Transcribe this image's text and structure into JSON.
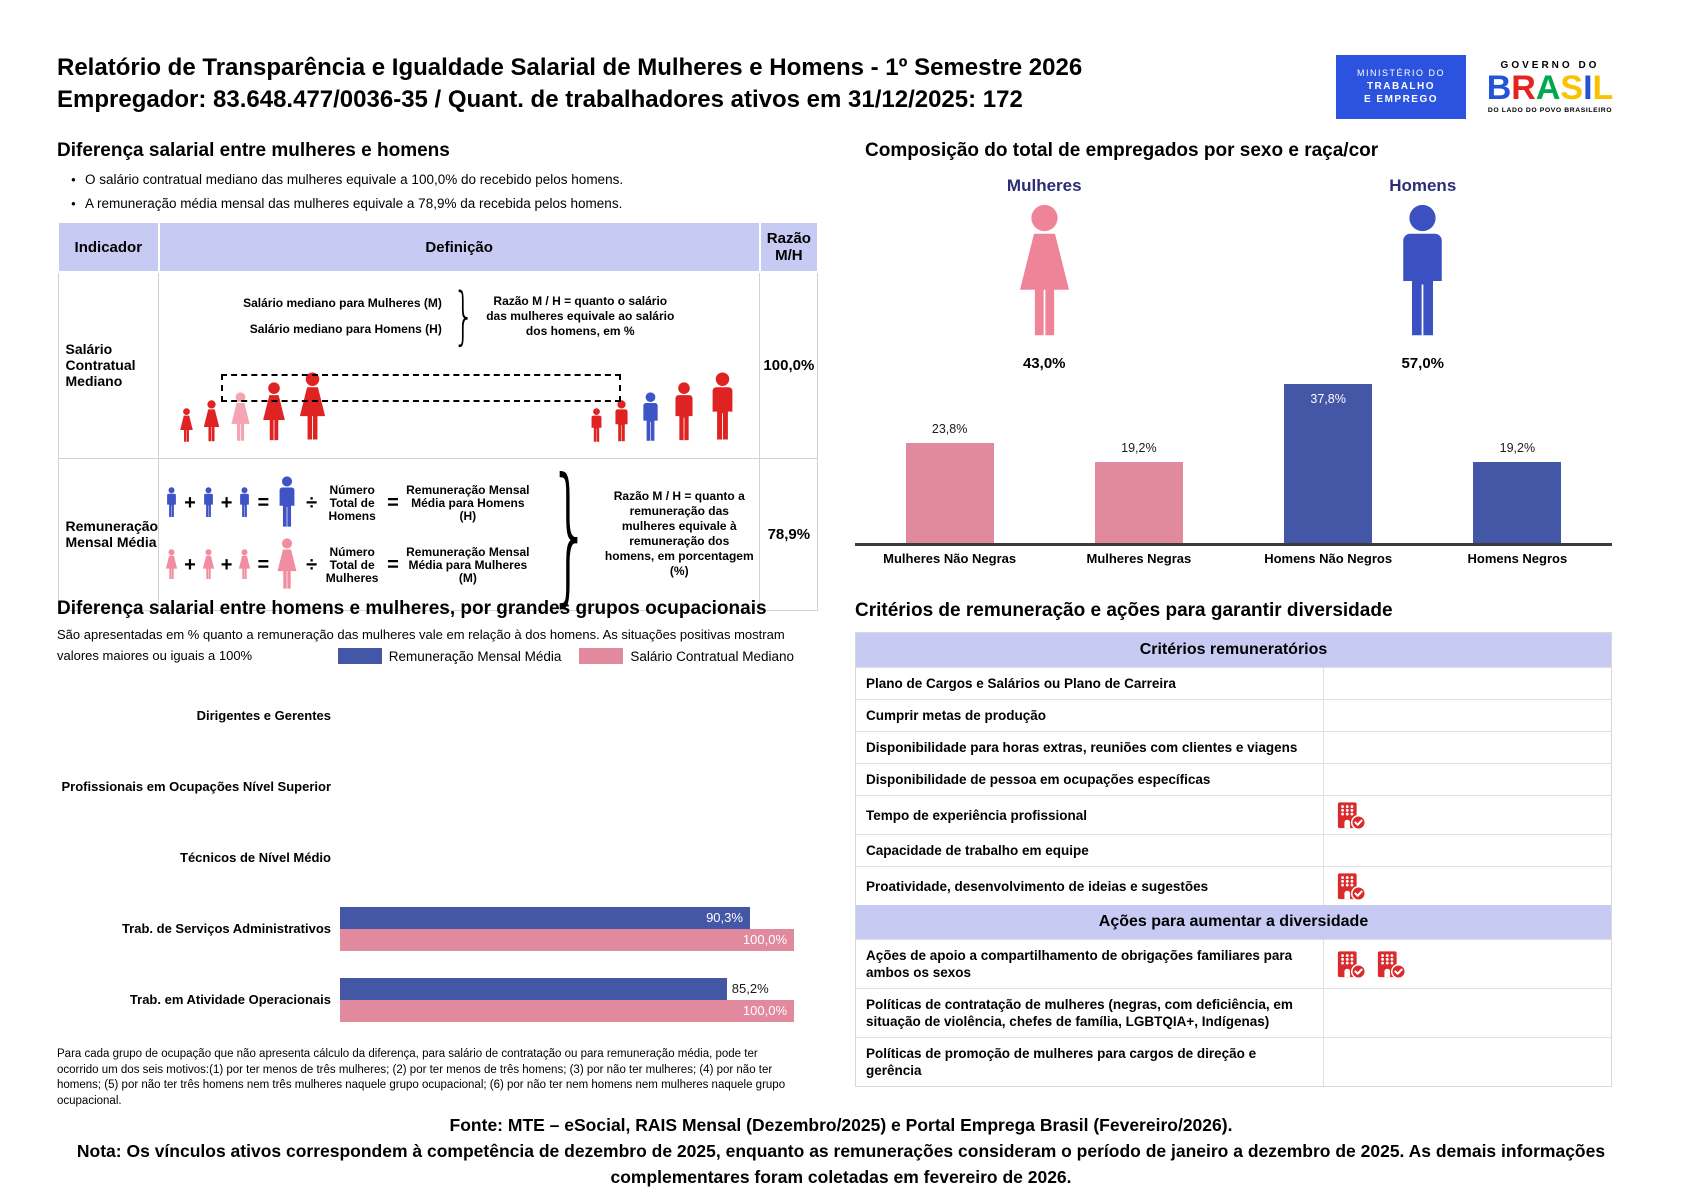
{
  "header": {
    "title_line1": "Relatório de Transparência e Igualdade Salarial de Mulheres e Homens - 1º Semestre 2026",
    "title_line2": "Empregador: 83.648.477/0036-35 / Quant. de trabalhadores ativos em 31/12/2025: 172",
    "logo_mte": {
      "line1": "MINISTÉRIO DO",
      "line2": "TRABALHO",
      "line3": "E EMPREGO"
    },
    "logo_gov": {
      "top": "GOVERNO DO",
      "brand": "BRASIL",
      "bottom": "DO LADO DO POVO BRASILEIRO"
    }
  },
  "colors": {
    "bar_blue": "#4456A6",
    "bar_pink": "#E28A9D",
    "figure_red": "#DF2222",
    "median_pink": "#F3A5B1",
    "median_blue": "#3E55C8",
    "formula_blue": "#4053C6",
    "formula_pink": "#F28CA0",
    "icon_female_pink": "#EF8499",
    "icon_male_blue": "#3B50C1",
    "band_purple": "#C7CBF3",
    "building_red": "#D92B2B",
    "navy": "#2B2D75"
  },
  "pay_gap": {
    "title": "Diferença salarial entre mulheres e homens",
    "bullets": [
      "O salário contratual mediano das mulheres equivale a 100,0% do recebido pelos homens.",
      "A remuneração média mensal das mulheres equivale a 78,9% da recebida pelos homens."
    ],
    "table": {
      "headers": [
        "Indicador",
        "Definição",
        "Razão M/H"
      ],
      "row_median": {
        "indicator": "Salário Contratual Mediano",
        "line_women": "Salário mediano para Mulheres (M)",
        "line_men": "Salário mediano para Homens (H)",
        "note": "Razão M / H = quanto o salário das mulheres equivale ao salário dos homens, em %",
        "ratio": "100,0%"
      },
      "row_mean": {
        "indicator": "Remuneração Mensal Média",
        "men_divisor": "Número Total de Homens",
        "men_result": "Remuneração Mensal Média para Homens (H)",
        "women_divisor": "Número Total de Mulheres",
        "women_result": "Remuneração Mensal Média para Mulheres (M)",
        "note": "Razão M / H = quanto a remuneração das mulheres equivale à remuneração dos homens, em porcentagem (%)",
        "ratio": "78,9%"
      }
    }
  },
  "composition": {
    "title": "Composição do total de empregados por sexo e raça/cor",
    "female_label": "Mulheres",
    "female_pct": "43,0%",
    "male_label": "Homens",
    "male_pct": "57,0%"
  },
  "occupation": {
    "title": "Diferença salarial entre homens e mulheres, por grandes grupos ocupacionais",
    "subtitle": "São apresentadas em % quanto a remuneração das mulheres vale em relação à dos homens. As situações positivas mostram valores maiores ou iguais a 100%",
    "footnote": "Para cada grupo de ocupação que não apresenta cálculo da diferença, para salário de contratação ou para remuneração média, pode ter ocorrido um dos seis motivos:(1) por ter menos de três mulheres; (2) por ter menos de três homens; (3) por não ter mulheres; (4) por não ter homens; (5) por não ter três homens nem três mulheres naquele grupo ocupacional; (6) por não ter nem homens nem mulheres naquele grupo ocupacional."
  },
  "criteria": {
    "title": "Critérios de remuneração e ações para garantir diversidade",
    "band1": "Critérios remuneratórios",
    "rows1": [
      {
        "label": "Plano de Cargos e Salários ou Plano de Carreira",
        "icons": 0
      },
      {
        "label": "Cumprir metas de produção",
        "icons": 0
      },
      {
        "label": "Disponibilidade para horas extras, reuniões com clientes e viagens",
        "icons": 0
      },
      {
        "label": "Disponibilidade de pessoa em ocupações específicas",
        "icons": 0
      },
      {
        "label": "Tempo de experiência profissional",
        "icons": 1
      },
      {
        "label": "Capacidade de trabalho em equipe",
        "icons": 0
      },
      {
        "label": "Proatividade, desenvolvimento de ideias e sugestões",
        "icons": 1
      }
    ],
    "band2": "Ações para aumentar a diversidade",
    "rows2": [
      {
        "label": "Ações de apoio a compartilhamento de obrigações familiares para ambos os sexos",
        "icons": 2
      },
      {
        "label": "Políticas de contratação de mulheres (negras, com deficiência, em situação de violência, chefes de família, LGBTQIA+, Indígenas)",
        "icons": 0
      },
      {
        "label": "Políticas de promoção de mulheres para cargos de direção e gerência",
        "icons": 0
      }
    ]
  },
  "footer": {
    "source": "Fonte: MTE – eSocial, RAIS Mensal (Dezembro/2025) e Portal Emprega Brasil (Fevereiro/2026).",
    "note": "Nota: Os vínculos ativos correspondem à competência de dezembro de 2025, enquanto as remunerações consideram o período de janeiro a dezembro de 2025. As demais informações complementares foram coletadas em fevereiro de 2026."
  },
  "chart_data": [
    {
      "type": "bar",
      "title": "Composição do total de empregados por sexo e raça/cor",
      "categories": [
        "Mulheres Não Negras",
        "Mulheres Negras",
        "Homens Não Negros",
        "Homens Negros"
      ],
      "values": [
        23.8,
        19.2,
        37.8,
        19.2
      ],
      "labels": [
        "23,8%",
        "19,2%",
        "37,8%",
        "19,2%"
      ],
      "label_inside": [
        false,
        false,
        true,
        false
      ],
      "colors": [
        "#E28A9D",
        "#E28A9D",
        "#4456A6",
        "#4456A6"
      ],
      "totals": {
        "Mulheres": "43,0%",
        "Homens": "57,0%"
      },
      "ylim": [
        0,
        40
      ],
      "grid": false,
      "legend_position": "none"
    },
    {
      "type": "bar",
      "orientation": "horizontal",
      "title": "Diferença salarial entre homens e mulheres, por grandes grupos ocupacionais",
      "categories": [
        "Dirigentes e Gerentes",
        "Profissionais em Ocupações Nível Superior",
        "Técnicos de Nível Médio",
        "Trab. de Serviços Administrativos",
        "Trab. em Atividade Operacionais"
      ],
      "series": [
        {
          "name": "Remuneração Mensal Média",
          "color": "#4456A6",
          "values": [
            null,
            null,
            null,
            90.3,
            85.2
          ],
          "labels": [
            null,
            null,
            null,
            "90,3%",
            "85,2%"
          ],
          "label_inside": [
            null,
            null,
            null,
            true,
            false
          ]
        },
        {
          "name": "Salário Contratual Mediano",
          "color": "#E28A9D",
          "values": [
            null,
            null,
            null,
            100.0,
            100.0
          ],
          "labels": [
            null,
            null,
            null,
            "100,0%",
            "100,0%"
          ],
          "label_inside": [
            null,
            null,
            null,
            true,
            true
          ]
        }
      ],
      "xlim": [
        0,
        100
      ],
      "grid": false,
      "legend_position": "top"
    }
  ]
}
